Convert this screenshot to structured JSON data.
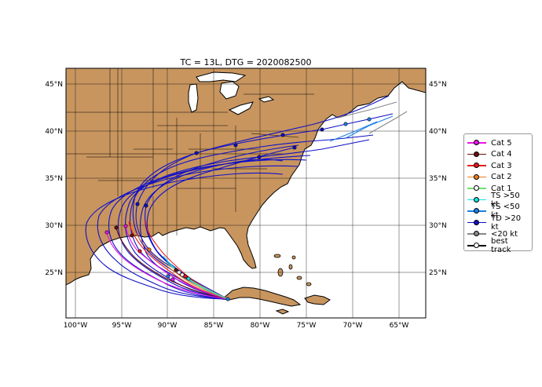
{
  "title": "TC = 13L, DTG = 2020082500",
  "lon_ticks": [
    "100°W",
    "95°W",
    "90°W",
    "85°W",
    "80°W",
    "75°W",
    "70°W",
    "65°W"
  ],
  "lat_ticks": [
    "25°N",
    "30°N",
    "35°N",
    "40°N",
    "45°N"
  ],
  "extent": {
    "lon": [
      -100.5,
      -62.5
    ],
    "lat": [
      20,
      46.5
    ]
  },
  "colors": {
    "land": "#c8955f",
    "ocean": "#ffffff",
    "grid": "#000000"
  },
  "legend": [
    {
      "label": "Cat 5",
      "color": "#e617e6",
      "marker": "#e617e6"
    },
    {
      "label": "Cat 4",
      "color": "#6b1010",
      "marker": "#6b1010"
    },
    {
      "label": "Cat 3",
      "color": "#e61a1a",
      "marker": "#e61a1a"
    },
    {
      "label": "Cat 2",
      "color": "#f07c1a",
      "marker": "#f07c1a"
    },
    {
      "label": "Cat 1",
      "color": "#6fe06f",
      "marker": "#ffffff"
    },
    {
      "label": "TS >50 kt",
      "color": "#1ae0e0",
      "marker": "#1ae0e0"
    },
    {
      "label": "TS <50 kt",
      "color": "#1a7fe6",
      "marker": "#1a7fe6"
    },
    {
      "label": "TD >20 kt",
      "color": "#1010c8",
      "marker": "#1010c8"
    },
    {
      "label": "<20 kt",
      "color": "#888888",
      "marker": "#888888"
    },
    {
      "label": "best track",
      "color": "#000000",
      "marker": "#ffffff"
    }
  ]
}
